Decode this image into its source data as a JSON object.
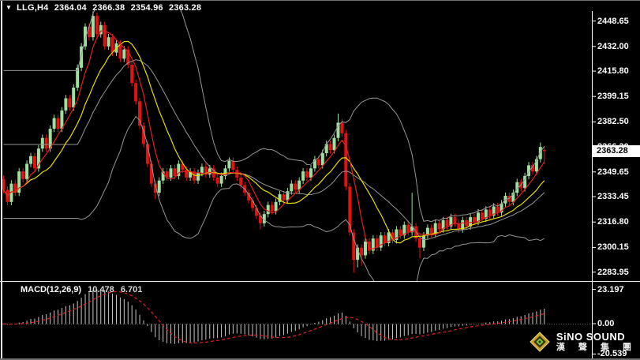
{
  "header": {
    "dropdown_icon": "▼",
    "symbol": "LLG,H4",
    "open": "2364.04",
    "high": "2366.38",
    "low": "2354.96",
    "close": "2363.28"
  },
  "y_axis": {
    "ticks": [
      {
        "price": 2448.65,
        "label": "2448.65"
      },
      {
        "price": 2432.0,
        "label": "2432.00"
      },
      {
        "price": 2415.8,
        "label": "2415.80"
      },
      {
        "price": 2399.15,
        "label": "2399.15"
      },
      {
        "price": 2382.5,
        "label": "2382.50"
      },
      {
        "price": 2366.3,
        "label": "2366.30"
      },
      {
        "price": 2349.65,
        "label": "2349.65"
      },
      {
        "price": 2333.45,
        "label": "2333.45"
      },
      {
        "price": 2316.8,
        "label": "2316.80"
      },
      {
        "price": 2300.15,
        "label": "2300.15"
      },
      {
        "price": 2283.95,
        "label": "2283.95"
      }
    ],
    "current": {
      "price": 2363.28,
      "label": "2363.28"
    }
  },
  "macd_panel": {
    "label": "MACD(12,26,9)",
    "main_value": "10.478",
    "signal_value": "6.701",
    "ticks": [
      {
        "value": 23.197,
        "label": "23.197"
      },
      {
        "value": 0,
        "label": "0.00"
      },
      {
        "value": -20.539,
        "label": "-20.539"
      }
    ]
  },
  "logo": {
    "brand": "SiNO SOUND",
    "chinese": "漢 聲 集 團"
  },
  "colors": {
    "background": "#000000",
    "bull": "#9FDF9F",
    "bear": "#E31212",
    "band": "#969696",
    "ma_fast": "#E02020",
    "ma_slow": "#E8DC00",
    "histogram": "#C8C8C8",
    "signal": "#E02020",
    "axis_line": "#FFFFFF",
    "zero_line": "#555555",
    "gold_outer": "#C9A227",
    "gold_inner": "#6B5A14",
    "logo_green": "#7AC943"
  },
  "chart_data": {
    "type": "candlestick",
    "symbol": "LLG",
    "timeframe": "H4",
    "last_ohlc": {
      "open": 2364.04,
      "high": 2366.38,
      "low": 2354.96,
      "close": 2363.28
    },
    "visible_price_range": [
      2283.95,
      2448.65
    ],
    "indicators": {
      "bollinger": {
        "period": 20,
        "deviation": 2
      },
      "ma_fast_period": 6,
      "ma_slow_period": 13,
      "macd": {
        "fast": 12,
        "slow": 26,
        "signal": 9,
        "main": 10.478,
        "signal_value": 6.701,
        "scale_max": 23.197,
        "scale_min": -20.539
      }
    },
    "candles": [
      [
        2345,
        2347.2,
        2335.8,
        2338
      ],
      [
        2338,
        2340.2,
        2327.8,
        2330
      ],
      [
        2330,
        2344.2,
        2327.8,
        2342
      ],
      [
        2342,
        2344.2,
        2333.8,
        2336
      ],
      [
        2336,
        2352.2,
        2333.8,
        2350
      ],
      [
        2350,
        2352.2,
        2342.8,
        2345
      ],
      [
        2345,
        2357.2,
        2342.8,
        2355
      ],
      [
        2355,
        2362.2,
        2352.8,
        2360
      ],
      [
        2360,
        2362.2,
        2349.8,
        2352
      ],
      [
        2352,
        2367.2,
        2349.8,
        2365
      ],
      [
        2365,
        2374.2,
        2362.8,
        2372
      ],
      [
        2372,
        2374.2,
        2362.8,
        2365
      ],
      [
        2365,
        2380.2,
        2362.8,
        2378
      ],
      [
        2378,
        2387.2,
        2375.8,
        2385
      ],
      [
        2385,
        2387.2,
        2375.8,
        2378
      ],
      [
        2378,
        2392.2,
        2375.8,
        2390
      ],
      [
        2390,
        2400.2,
        2387.8,
        2398
      ],
      [
        2398,
        2400.2,
        2389.8,
        2392
      ],
      [
        2392,
        2407.2,
        2389.8,
        2405
      ],
      [
        2405,
        2420.2,
        2402.8,
        2418
      ],
      [
        2418,
        2434.2,
        2415.8,
        2432
      ],
      [
        2432,
        2447.2,
        2429.8,
        2445
      ],
      [
        2445,
        2447.2,
        2435.8,
        2438
      ],
      [
        2438,
        2455,
        2435.8,
        2452
      ],
      [
        2452,
        2454.2,
        2437.8,
        2440
      ],
      [
        2440,
        2448.2,
        2437.8,
        2446
      ],
      [
        2446,
        2448.2,
        2429.8,
        2432
      ],
      [
        2432,
        2440.2,
        2429.8,
        2438
      ],
      [
        2438,
        2440.2,
        2425.8,
        2428
      ],
      [
        2428,
        2436.2,
        2425.8,
        2434
      ],
      [
        2434,
        2436.2,
        2421.8,
        2424
      ],
      [
        2424,
        2432.2,
        2421.8,
        2430
      ],
      [
        2430,
        2432.2,
        2417.8,
        2420
      ],
      [
        2420,
        2422.2,
        2405.8,
        2408
      ],
      [
        2408,
        2410.2,
        2393.8,
        2396
      ],
      [
        2396,
        2398.2,
        2377.8,
        2380
      ],
      [
        2380,
        2382.2,
        2365.8,
        2368
      ],
      [
        2368,
        2370.2,
        2352.8,
        2355
      ],
      [
        2355,
        2357.2,
        2339.8,
        2342
      ],
      [
        2342,
        2344.2,
        2332,
        2336
      ],
      [
        2336,
        2346.2,
        2333.8,
        2344
      ],
      [
        2344,
        2352.2,
        2341.8,
        2350
      ],
      [
        2350,
        2352.2,
        2343.8,
        2346
      ],
      [
        2346,
        2354.2,
        2343.8,
        2352
      ],
      [
        2352,
        2354.2,
        2344.8,
        2347
      ],
      [
        2347,
        2357.2,
        2344.8,
        2355
      ],
      [
        2355,
        2357.2,
        2348.8,
        2351
      ],
      [
        2351,
        2353.2,
        2343.8,
        2346
      ],
      [
        2346,
        2352.2,
        2343.8,
        2350
      ],
      [
        2350,
        2352.2,
        2341.8,
        2344
      ],
      [
        2344,
        2351.2,
        2341.8,
        2349
      ],
      [
        2349,
        2355.2,
        2346.8,
        2353
      ],
      [
        2353,
        2355.2,
        2345.8,
        2348
      ],
      [
        2348,
        2354.2,
        2345.8,
        2352
      ],
      [
        2352,
        2354.2,
        2343.8,
        2346
      ],
      [
        2346,
        2348.2,
        2339.8,
        2342
      ],
      [
        2342,
        2349.2,
        2339.8,
        2347
      ],
      [
        2347,
        2354.2,
        2344.8,
        2352
      ],
      [
        2352,
        2359.2,
        2349.8,
        2357
      ],
      [
        2357,
        2359.2,
        2348.8,
        2351
      ],
      [
        2351,
        2353.2,
        2343.8,
        2346
      ],
      [
        2346,
        2348.2,
        2338.8,
        2341
      ],
      [
        2341,
        2343.2,
        2333.8,
        2336
      ],
      [
        2336,
        2338.2,
        2328.8,
        2331
      ],
      [
        2331,
        2333.2,
        2323.8,
        2326
      ],
      [
        2326,
        2328.2,
        2318.8,
        2321
      ],
      [
        2321,
        2323.2,
        2312,
        2316
      ],
      [
        2316,
        2324.2,
        2313.8,
        2322
      ],
      [
        2322,
        2330.2,
        2319.8,
        2328
      ],
      [
        2328,
        2330.2,
        2321.8,
        2324
      ],
      [
        2324,
        2332.2,
        2321.8,
        2330
      ],
      [
        2330,
        2337.2,
        2327.8,
        2335
      ],
      [
        2335,
        2337.2,
        2328.8,
        2331
      ],
      [
        2331,
        2339.2,
        2328.8,
        2337
      ],
      [
        2337,
        2344.2,
        2334.8,
        2342
      ],
      [
        2342,
        2344.2,
        2335.8,
        2338
      ],
      [
        2338,
        2346.2,
        2335.8,
        2344
      ],
      [
        2344,
        2352.2,
        2341.8,
        2350
      ],
      [
        2350,
        2352.2,
        2343.8,
        2346
      ],
      [
        2346,
        2354.2,
        2343.8,
        2352
      ],
      [
        2352,
        2360.2,
        2349.8,
        2358
      ],
      [
        2358,
        2360.2,
        2351.8,
        2354
      ],
      [
        2354,
        2364.2,
        2351.8,
        2362
      ],
      [
        2362,
        2370.2,
        2359.8,
        2368
      ],
      [
        2368,
        2370.2,
        2361.8,
        2364
      ],
      [
        2364,
        2374.2,
        2361.8,
        2372
      ],
      [
        2372,
        2388,
        2369.8,
        2382
      ],
      [
        2382,
        2384.2,
        2372.8,
        2375
      ],
      [
        2375,
        2377.2,
        2337.8,
        2340
      ],
      [
        2340,
        2342.2,
        2307.8,
        2310
      ],
      [
        2310,
        2312.2,
        2283.5,
        2292
      ],
      [
        2292,
        2302.2,
        2287,
        2300
      ],
      [
        2300,
        2302.2,
        2288,
        2295
      ],
      [
        2295,
        2306.2,
        2292.8,
        2304
      ],
      [
        2304,
        2306.2,
        2295.8,
        2298
      ],
      [
        2298,
        2308.2,
        2295.8,
        2306
      ],
      [
        2306,
        2308.2,
        2297.8,
        2300
      ],
      [
        2300,
        2310.2,
        2297.8,
        2308
      ],
      [
        2308,
        2310.2,
        2300.8,
        2303
      ],
      [
        2303,
        2312.2,
        2300.8,
        2310
      ],
      [
        2310,
        2312.2,
        2302.8,
        2305
      ],
      [
        2305,
        2314.2,
        2302.8,
        2312
      ],
      [
        2312,
        2314.2,
        2305.8,
        2308
      ],
      [
        2308,
        2317.2,
        2305.8,
        2315
      ],
      [
        2315,
        2317.2,
        2307.8,
        2310
      ],
      [
        2310,
        2336,
        2307.8,
        2314
      ],
      [
        2314,
        2316.2,
        2303.8,
        2306
      ],
      [
        2306,
        2308.2,
        2293,
        2300
      ],
      [
        2300,
        2310.2,
        2297.8,
        2308
      ],
      [
        2308,
        2315.2,
        2305.8,
        2313
      ],
      [
        2313,
        2315.2,
        2306.8,
        2309
      ],
      [
        2309,
        2318.2,
        2306.8,
        2316
      ],
      [
        2316,
        2318.2,
        2309.8,
        2312
      ],
      [
        2312,
        2320.2,
        2309.8,
        2318
      ],
      [
        2318,
        2320.2,
        2311.8,
        2314
      ],
      [
        2314,
        2322.2,
        2311.8,
        2320
      ],
      [
        2320,
        2322.2,
        2313.8,
        2316
      ],
      [
        2316,
        2318.2,
        2309.8,
        2312
      ],
      [
        2312,
        2320.2,
        2309.8,
        2318
      ],
      [
        2318,
        2320.2,
        2311.8,
        2314
      ],
      [
        2314,
        2322.2,
        2311.8,
        2320
      ],
      [
        2320,
        2322.2,
        2314.8,
        2317
      ],
      [
        2317,
        2325.2,
        2314.8,
        2323
      ],
      [
        2323,
        2325.2,
        2316.8,
        2319
      ],
      [
        2319,
        2327.2,
        2316.8,
        2325
      ],
      [
        2325,
        2327.2,
        2318.8,
        2321
      ],
      [
        2321,
        2329.2,
        2318.8,
        2327
      ],
      [
        2327,
        2329.2,
        2320.8,
        2323
      ],
      [
        2323,
        2331.2,
        2320.8,
        2329
      ],
      [
        2329,
        2336.2,
        2326.8,
        2334
      ],
      [
        2334,
        2336.2,
        2327.8,
        2330
      ],
      [
        2330,
        2338.2,
        2327.8,
        2336
      ],
      [
        2336,
        2345.2,
        2333.8,
        2343
      ],
      [
        2343,
        2345.2,
        2336.8,
        2339
      ],
      [
        2339,
        2349.2,
        2336.8,
        2347
      ],
      [
        2347,
        2356.2,
        2344.8,
        2354
      ],
      [
        2354,
        2356.2,
        2347.8,
        2350
      ],
      [
        2350,
        2360.2,
        2347.8,
        2358
      ],
      [
        2358,
        2369,
        2355.8,
        2366
      ],
      [
        2364.04,
        2366.38,
        2354.96,
        2363.28
      ]
    ]
  }
}
